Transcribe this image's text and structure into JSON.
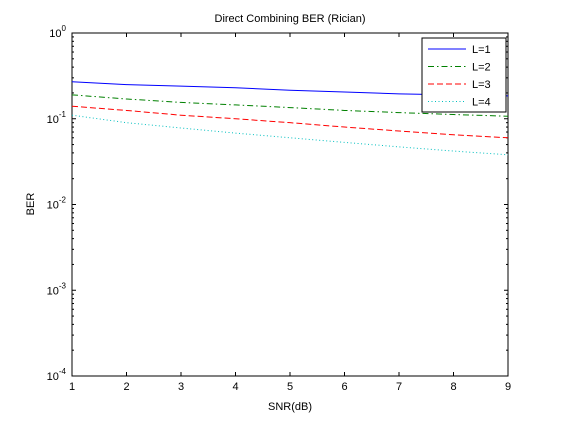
{
  "chart_data": {
    "type": "line",
    "title": "Direct Combining BER (Rician)",
    "xlabel": "SNR(dB)",
    "ylabel": "BER",
    "x": [
      1,
      2,
      3,
      4,
      5,
      6,
      7,
      8,
      9
    ],
    "xlim": [
      1,
      9
    ],
    "ylim": [
      0.0001,
      1
    ],
    "yscale": "log",
    "xticks": [
      "1",
      "2",
      "3",
      "4",
      "5",
      "6",
      "7",
      "8",
      "9"
    ],
    "yticks": [
      {
        "value": 0.0001,
        "base": "10",
        "exp": "-4"
      },
      {
        "value": 0.001,
        "base": "10",
        "exp": "-3"
      },
      {
        "value": 0.01,
        "base": "10",
        "exp": "-2"
      },
      {
        "value": 0.1,
        "base": "10",
        "exp": "-1"
      },
      {
        "value": 1,
        "base": "10",
        "exp": "0"
      }
    ],
    "legend_position": "top-right",
    "series": [
      {
        "name": "L=1",
        "color": "#0000ff",
        "dash": "solid",
        "values": [
          0.27,
          0.25,
          0.24,
          0.23,
          0.215,
          0.205,
          0.195,
          0.19,
          0.185
        ]
      },
      {
        "name": "L=2",
        "color": "#008000",
        "dash": "dashdot",
        "values": [
          0.19,
          0.17,
          0.155,
          0.145,
          0.135,
          0.125,
          0.118,
          0.112,
          0.107
        ]
      },
      {
        "name": "L=3",
        "color": "#ff0000",
        "dash": "dashed",
        "values": [
          0.14,
          0.125,
          0.11,
          0.1,
          0.09,
          0.08,
          0.072,
          0.065,
          0.06
        ]
      },
      {
        "name": "L=4",
        "color": "#00bfbf",
        "dash": "dotted",
        "values": [
          0.11,
          0.09,
          0.078,
          0.068,
          0.06,
          0.053,
          0.047,
          0.042,
          0.038
        ]
      }
    ]
  }
}
